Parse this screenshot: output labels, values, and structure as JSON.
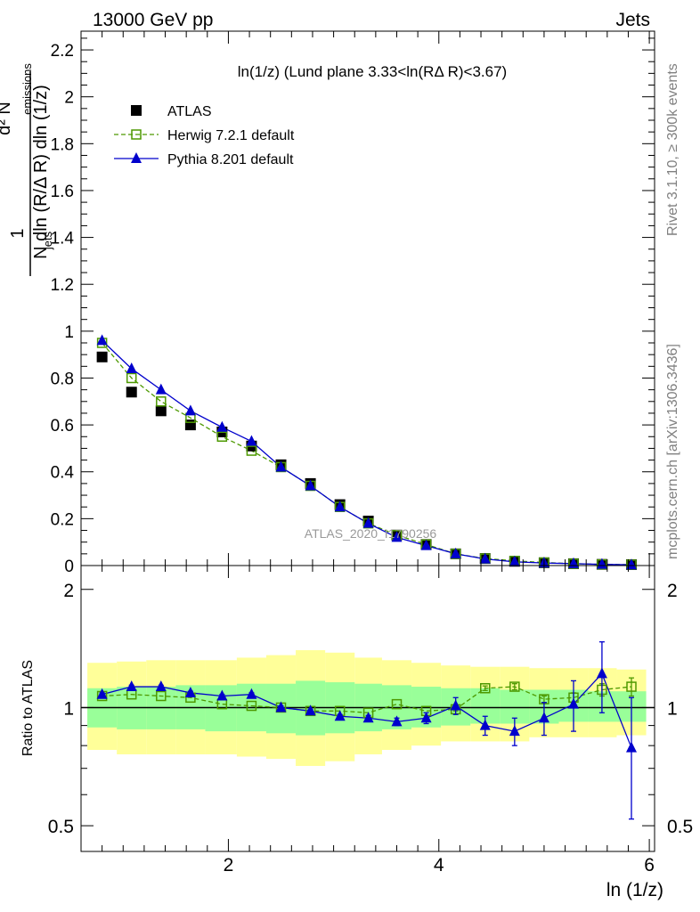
{
  "header": {
    "left_label": "13000 GeV pp",
    "right_label": "Jets"
  },
  "side_labels": {
    "rivet": "Rivet 3.1.10, ≥ 300k events",
    "mcplots": "mcplots.cern.ch [arXiv:1306.3436]"
  },
  "chart_data": [
    {
      "type": "scatter",
      "title": "ln(1/z) (Lund plane 3.33<ln(RΔ R)<3.67)",
      "ylabel": "1/N_jets dln (R/Δ R) dln (1/z) · d² N_emissions",
      "xlim": [
        0.6,
        6.05
      ],
      "ylim": [
        0,
        2.28
      ],
      "yticks": [
        "0",
        "0.2",
        "0.4",
        "0.6",
        "0.8",
        "1",
        "1.2",
        "1.4",
        "1.6",
        "1.8",
        "2",
        "2.2"
      ],
      "watermark": "ATLAS_2020_I1790256",
      "x": [
        0.8,
        1.08,
        1.36,
        1.64,
        1.94,
        2.22,
        2.5,
        2.78,
        3.06,
        3.33,
        3.6,
        3.88,
        4.16,
        4.44,
        4.72,
        5.0,
        5.28,
        5.55,
        5.83
      ],
      "series": [
        {
          "name": "ATLAS",
          "color": "#000000",
          "marker": "filled-square",
          "values": [
            0.89,
            0.74,
            0.66,
            0.6,
            0.57,
            0.51,
            0.43,
            0.35,
            0.26,
            0.19,
            0.13,
            0.09,
            0.05,
            0.03,
            0.018,
            0.012,
            0.008,
            0.005,
            0.004
          ]
        },
        {
          "name": "Herwig 7.2.1 default",
          "color": "#4d9900",
          "marker": "open-square",
          "line": "dashed",
          "values": [
            0.95,
            0.8,
            0.7,
            0.63,
            0.55,
            0.49,
            0.42,
            0.34,
            0.25,
            0.18,
            0.13,
            0.09,
            0.05,
            0.03,
            0.02,
            0.013,
            0.008,
            0.005,
            0.004
          ]
        },
        {
          "name": "Pythia 8.201 default",
          "color": "#0000cc",
          "marker": "filled-triangle",
          "line": "solid",
          "values": [
            0.96,
            0.84,
            0.75,
            0.66,
            0.59,
            0.53,
            0.42,
            0.34,
            0.25,
            0.18,
            0.12,
            0.085,
            0.05,
            0.028,
            0.016,
            0.011,
            0.008,
            0.005,
            0.003
          ]
        }
      ]
    },
    {
      "type": "scatter",
      "ylabel": "Ratio to ATLAS",
      "xlabel": "ln (1/z)",
      "xlim": [
        0.6,
        6.05
      ],
      "xticks": [
        "2",
        "4",
        "6"
      ],
      "ylim": [
        0.43,
        2.3
      ],
      "yscale": "log",
      "yticks": [
        "0.5",
        "1",
        "2"
      ],
      "reference_line": 1.0,
      "uncertainty_bands": {
        "x_edges": [
          0.66,
          0.94,
          1.22,
          1.5,
          1.78,
          2.08,
          2.36,
          2.64,
          2.92,
          3.2,
          3.46,
          3.74,
          4.02,
          4.3,
          4.58,
          4.86,
          5.14,
          5.42,
          5.69,
          5.97
        ],
        "stat_syst_color": "#ffff99",
        "stat_color": "#99ff99",
        "outer_low": [
          0.78,
          0.76,
          0.76,
          0.76,
          0.76,
          0.75,
          0.74,
          0.71,
          0.73,
          0.76,
          0.78,
          0.8,
          0.82,
          0.82,
          0.82,
          0.84,
          0.84,
          0.84,
          0.85
        ],
        "outer_high": [
          1.3,
          1.31,
          1.32,
          1.32,
          1.32,
          1.34,
          1.36,
          1.4,
          1.38,
          1.34,
          1.32,
          1.3,
          1.28,
          1.27,
          1.27,
          1.26,
          1.26,
          1.26,
          1.25
        ],
        "inner_low": [
          0.89,
          0.88,
          0.88,
          0.88,
          0.87,
          0.87,
          0.86,
          0.85,
          0.86,
          0.87,
          0.88,
          0.89,
          0.9,
          0.91,
          0.91,
          0.91,
          0.92,
          0.92,
          0.92
        ],
        "inner_high": [
          1.12,
          1.13,
          1.13,
          1.14,
          1.14,
          1.15,
          1.15,
          1.17,
          1.16,
          1.15,
          1.14,
          1.13,
          1.12,
          1.12,
          1.11,
          1.11,
          1.11,
          1.1,
          1.1
        ]
      },
      "x": [
        0.8,
        1.08,
        1.36,
        1.64,
        1.94,
        2.22,
        2.5,
        2.78,
        3.06,
        3.33,
        3.6,
        3.88,
        4.16,
        4.44,
        4.72,
        5.0,
        5.28,
        5.55,
        5.83
      ],
      "series": [
        {
          "name": "Herwig 7.2.1 default",
          "color": "#4d9900",
          "marker": "open-square",
          "line": "dashed",
          "values": [
            1.07,
            1.08,
            1.07,
            1.06,
            1.02,
            1.01,
            1.0,
            0.98,
            0.98,
            0.97,
            1.02,
            0.98,
            0.99,
            1.12,
            1.13,
            1.05,
            1.06,
            1.11,
            1.13
          ],
          "errors": [
            0.005,
            0.005,
            0.005,
            0.005,
            0.005,
            0.005,
            0.005,
            0.005,
            0.005,
            0.005,
            0.005,
            0.005,
            0.01,
            0.015,
            0.02,
            0.02,
            0.03,
            0.04,
            0.06
          ]
        },
        {
          "name": "Pythia 8.201 default",
          "color": "#0000cc",
          "marker": "filled-triangle",
          "line": "solid",
          "values": [
            1.08,
            1.13,
            1.13,
            1.09,
            1.07,
            1.08,
            1.0,
            0.98,
            0.95,
            0.94,
            0.92,
            0.94,
            1.01,
            0.9,
            0.87,
            0.94,
            1.02,
            1.22,
            0.79
          ],
          "errors": [
            0.01,
            0.01,
            0.01,
            0.01,
            0.01,
            0.01,
            0.01,
            0.01,
            0.01,
            0.015,
            0.02,
            0.03,
            0.05,
            0.05,
            0.07,
            0.09,
            0.15,
            0.25,
            0.27
          ]
        }
      ]
    }
  ]
}
